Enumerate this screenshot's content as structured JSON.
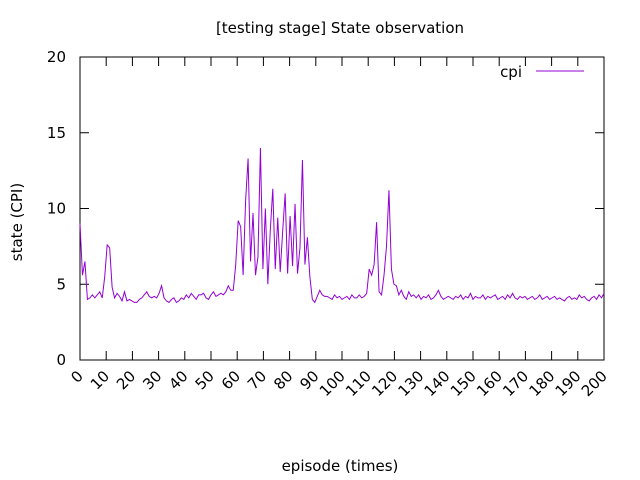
{
  "chart_data": {
    "type": "line",
    "title": "[testing stage] State observation",
    "xlabel": "episode (times)",
    "ylabel": "state (CPI)",
    "xlim": [
      0,
      200
    ],
    "ylim": [
      0,
      20
    ],
    "xticks": [
      "0",
      "10",
      "20",
      "30",
      "40",
      "50",
      "60",
      "70",
      "80",
      "90",
      "100",
      "110",
      "120",
      "130",
      "140",
      "150",
      "160",
      "170",
      "180",
      "190",
      "200"
    ],
    "yticks": [
      "0",
      "5",
      "10",
      "15",
      "20"
    ],
    "grid": false,
    "legend_position": "top-right",
    "line_color": "#9400d3",
    "series": [
      {
        "name": "cpi",
        "values": [
          9.0,
          5.6,
          6.5,
          4.0,
          4.1,
          4.3,
          4.1,
          4.3,
          4.5,
          4.1,
          5.5,
          7.6,
          7.4,
          4.8,
          4.1,
          4.4,
          4.2,
          3.9,
          4.5,
          3.9,
          4.0,
          3.9,
          3.8,
          3.8,
          4.0,
          4.1,
          4.3,
          4.5,
          4.2,
          4.1,
          4.2,
          4.1,
          4.4,
          4.9,
          4.1,
          3.9,
          3.8,
          4.0,
          4.1,
          3.8,
          3.9,
          4.1,
          4.0,
          4.3,
          4.1,
          4.4,
          4.2,
          4.0,
          4.3,
          4.3,
          4.4,
          4.1,
          4.0,
          4.3,
          4.5,
          4.2,
          4.3,
          4.4,
          4.3,
          4.5,
          4.9,
          4.6,
          4.6,
          6.3,
          9.2,
          8.8,
          5.6,
          10.5,
          13.3,
          6.5,
          9.7,
          5.6,
          6.8,
          14.0,
          6.0,
          10.0,
          5.0,
          8.6,
          11.3,
          6.0,
          9.4,
          5.8,
          8.5,
          11.0,
          5.7,
          9.5,
          6.2,
          10.3,
          5.7,
          7.4,
          13.2,
          6.3,
          8.1,
          5.5,
          4.0,
          3.8,
          4.2,
          4.6,
          4.3,
          4.2,
          4.2,
          4.1,
          4.0,
          4.3,
          4.1,
          4.2,
          4.0,
          4.1,
          4.2,
          4.0,
          4.3,
          4.1,
          4.1,
          4.3,
          4.1,
          4.2,
          4.4,
          6.0,
          5.6,
          6.3,
          9.1,
          4.5,
          4.3,
          5.6,
          7.5,
          11.2,
          6.0,
          5.0,
          4.9,
          4.3,
          4.6,
          4.2,
          4.0,
          4.5,
          4.2,
          4.3,
          4.1,
          4.3,
          4.0,
          4.2,
          4.1,
          4.3,
          4.0,
          4.1,
          4.3,
          4.6,
          4.2,
          4.0,
          4.1,
          4.2,
          4.1,
          4.0,
          4.2,
          4.1,
          4.3,
          4.0,
          4.2,
          4.1,
          4.4,
          4.0,
          4.2,
          4.1,
          4.1,
          4.3,
          4.0,
          4.2,
          4.1,
          4.2,
          4.3,
          4.0,
          4.1,
          4.2,
          4.0,
          4.3,
          4.1,
          4.4,
          4.1,
          4.0,
          4.2,
          4.1,
          4.2,
          4.0,
          4.1,
          4.2,
          4.0,
          4.1,
          4.3,
          4.0,
          4.1,
          4.2,
          4.0,
          4.1,
          4.2,
          4.0,
          4.1,
          4.0,
          3.9,
          4.1,
          4.2,
          4.0,
          4.1,
          4.0,
          4.3,
          4.1,
          4.2,
          4.0,
          3.9,
          4.1,
          4.2,
          4.0,
          4.3,
          4.1,
          4.4
        ]
      }
    ]
  }
}
